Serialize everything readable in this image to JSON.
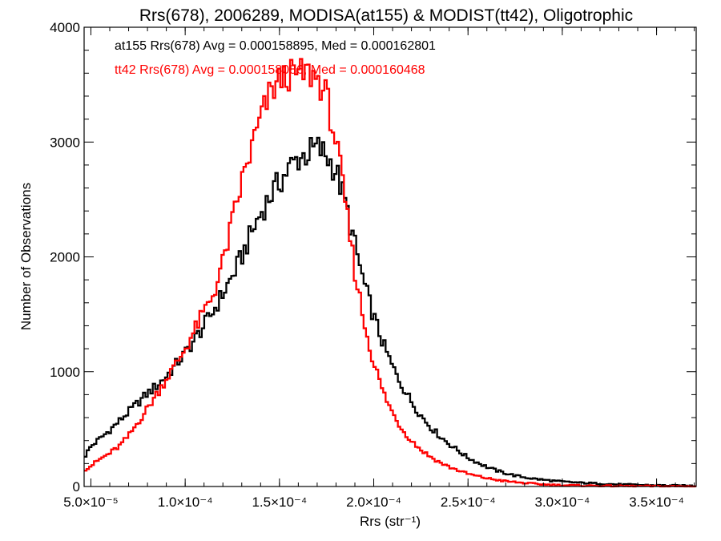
{
  "chart_data": {
    "type": "histogram",
    "title": "Rrs(678), 2006289, MODISA(at155) & MODIST(tt42), Oligotrophic",
    "xlabel": "Rrs (str⁻¹)",
    "ylabel": "Number of Observations",
    "xlim": [
      4.64e-05,
      0.000371
    ],
    "ylim": [
      0,
      4000
    ],
    "x_ticks": [
      {
        "value": 5e-05,
        "label": "5.0×10⁻⁵"
      },
      {
        "value": 0.0001,
        "label": "1.0×10⁻⁴"
      },
      {
        "value": 0.00015,
        "label": "1.5×10⁻⁴"
      },
      {
        "value": 0.0002,
        "label": "2.0×10⁻⁴"
      },
      {
        "value": 0.00025,
        "label": "2.5×10⁻⁴"
      },
      {
        "value": 0.0003,
        "label": "3.0×10⁻⁴"
      },
      {
        "value": 0.00035,
        "label": "3.5×10⁻⁴"
      }
    ],
    "y_ticks": [
      {
        "value": 0,
        "label": "0"
      },
      {
        "value": 1000,
        "label": "1000"
      },
      {
        "value": 2000,
        "label": "2000"
      },
      {
        "value": 3000,
        "label": "3000"
      },
      {
        "value": 4000,
        "label": "4000"
      }
    ],
    "grid": false,
    "legend_placement": "top-left",
    "series": [
      {
        "name": "at155",
        "legend_text": "at155 Rrs(678) Avg = 0.000158895, Med = 0.000162801",
        "color": "#000000",
        "x": [
          4.7e-05,
          5e-05,
          5.5e-05,
          6e-05,
          6.5e-05,
          7e-05,
          7.5e-05,
          8e-05,
          8.5e-05,
          9e-05,
          9.5e-05,
          0.0001,
          0.000105,
          0.00011,
          0.000115,
          0.00012,
          0.000125,
          0.00013,
          0.000135,
          0.00014,
          0.000145,
          0.00015,
          0.000155,
          0.00016,
          0.000165,
          0.00017,
          0.000175,
          0.00018,
          0.000185,
          0.00019,
          0.000195,
          0.0002,
          0.000205,
          0.00021,
          0.000215,
          0.00022,
          0.000225,
          0.00023,
          0.000235,
          0.00024,
          0.000245,
          0.00025,
          0.000255,
          0.00026,
          0.000265,
          0.00027,
          0.000275,
          0.00028,
          0.000285,
          0.00029,
          0.000295,
          0.0003,
          0.00031,
          0.00032,
          0.00033,
          0.00034,
          0.00035,
          0.00036,
          0.00037
        ],
        "y": [
          270,
          350,
          420,
          490,
          570,
          650,
          730,
          810,
          880,
          960,
          1060,
          1160,
          1280,
          1400,
          1530,
          1680,
          1830,
          2000,
          2200,
          2380,
          2530,
          2650,
          2770,
          2860,
          2900,
          2950,
          2880,
          2750,
          2470,
          2100,
          1760,
          1480,
          1240,
          1040,
          880,
          740,
          620,
          520,
          440,
          370,
          310,
          250,
          210,
          170,
          140,
          115,
          95,
          80,
          68,
          58,
          50,
          42,
          32,
          25,
          18,
          14,
          10,
          8,
          6
        ]
      },
      {
        "name": "tt42",
        "legend_text": "tt42 Rrs(678) Avg = 0.000158086, Med = 0.000160468",
        "color": "#ff0000",
        "x": [
          4.7e-05,
          5e-05,
          5.5e-05,
          6e-05,
          6.5e-05,
          7e-05,
          7.5e-05,
          8e-05,
          8.5e-05,
          9e-05,
          9.5e-05,
          0.0001,
          0.000105,
          0.00011,
          0.000115,
          0.00012,
          0.000125,
          0.00013,
          0.000135,
          0.00014,
          0.000145,
          0.00015,
          0.000155,
          0.00016,
          0.000165,
          0.00017,
          0.000175,
          0.00018,
          0.000185,
          0.00019,
          0.000195,
          0.0002,
          0.000205,
          0.00021,
          0.000215,
          0.00022,
          0.000225,
          0.00023,
          0.000235,
          0.00024,
          0.000245,
          0.00025,
          0.000255,
          0.00026,
          0.000265,
          0.00027,
          0.000275,
          0.00028,
          0.000285,
          0.00029,
          0.000295,
          0.0003,
          0.00031,
          0.00032,
          0.00033,
          0.00034,
          0.00035,
          0.00036,
          0.00037
        ],
        "y": [
          150,
          180,
          240,
          290,
          350,
          440,
          560,
          680,
          810,
          940,
          1060,
          1200,
          1360,
          1520,
          1680,
          1950,
          2300,
          2650,
          2930,
          3200,
          3420,
          3540,
          3580,
          3590,
          3600,
          3560,
          3400,
          3000,
          2450,
          1880,
          1420,
          1080,
          820,
          640,
          500,
          400,
          320,
          260,
          210,
          170,
          140,
          110,
          90,
          72,
          58,
          46,
          38,
          30,
          24,
          18,
          14,
          11,
          8,
          6,
          4,
          3,
          2,
          2,
          1
        ]
      }
    ]
  }
}
